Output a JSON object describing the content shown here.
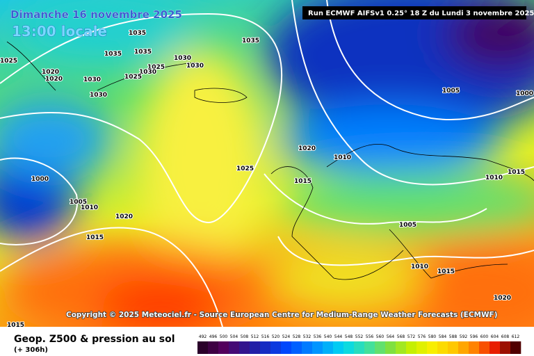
{
  "header": {
    "date": "Dimanche 16 novembre 2025",
    "time": "13:00 locale",
    "run": "Run ECMWF AIFSv1 0.25° 18 Z du Lundi 3 novembre 2025"
  },
  "copyright": "Copyright © 2025 Meteociel.fr - Source European Centre for Medium-Range Weather Forecasts (ECMWF)",
  "footer": {
    "title": "Geop. Z500 & pression au sol",
    "lead": "(+ 306h)"
  },
  "scale": {
    "labels": [
      492,
      496,
      500,
      504,
      508,
      512,
      516,
      520,
      524,
      528,
      532,
      536,
      540,
      544,
      548,
      552,
      556,
      560,
      564,
      568,
      572,
      576,
      580,
      584,
      588,
      592,
      596,
      600,
      604,
      608,
      612
    ]
  },
  "isobar_labels": [
    "1035",
    "1035",
    "1035",
    "1030",
    "1025",
    "1030",
    "1025",
    "1030",
    "1025",
    "1020",
    "1020",
    "1030",
    "1030",
    "1035",
    "1005",
    "1000",
    "1020",
    "1010",
    "1025",
    "1015",
    "1000",
    "1005",
    "1010",
    "1020",
    "1015",
    "1005",
    "1010",
    "1015",
    "1010",
    "1015",
    "1020",
    "1015"
  ]
}
